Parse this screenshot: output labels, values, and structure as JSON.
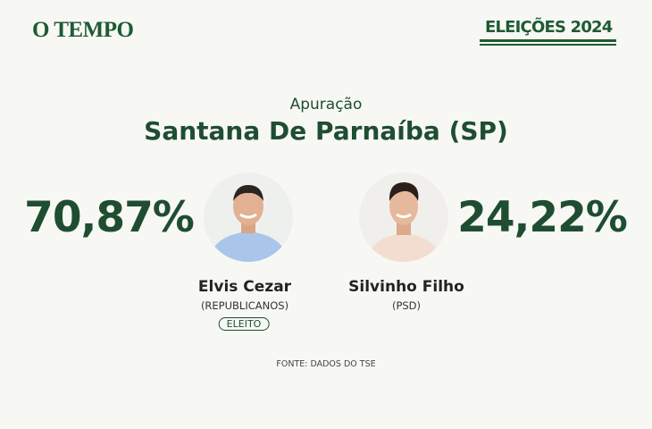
{
  "header": {
    "logo": "O TEMPO",
    "badge": "ELEIÇÕES 2024"
  },
  "subtitle": "Apuração",
  "title": "Santana De Parnaíba (SP)",
  "candidates": [
    {
      "percent": "70,87%",
      "name": "Elvis Cezar",
      "party": "(REPUBLICANOS)",
      "status": "ELEITO"
    },
    {
      "percent": "24,22%",
      "name": "Silvinho Filho",
      "party": "(PSD)"
    }
  ],
  "source": "FONTE: DADOS DO TSE"
}
